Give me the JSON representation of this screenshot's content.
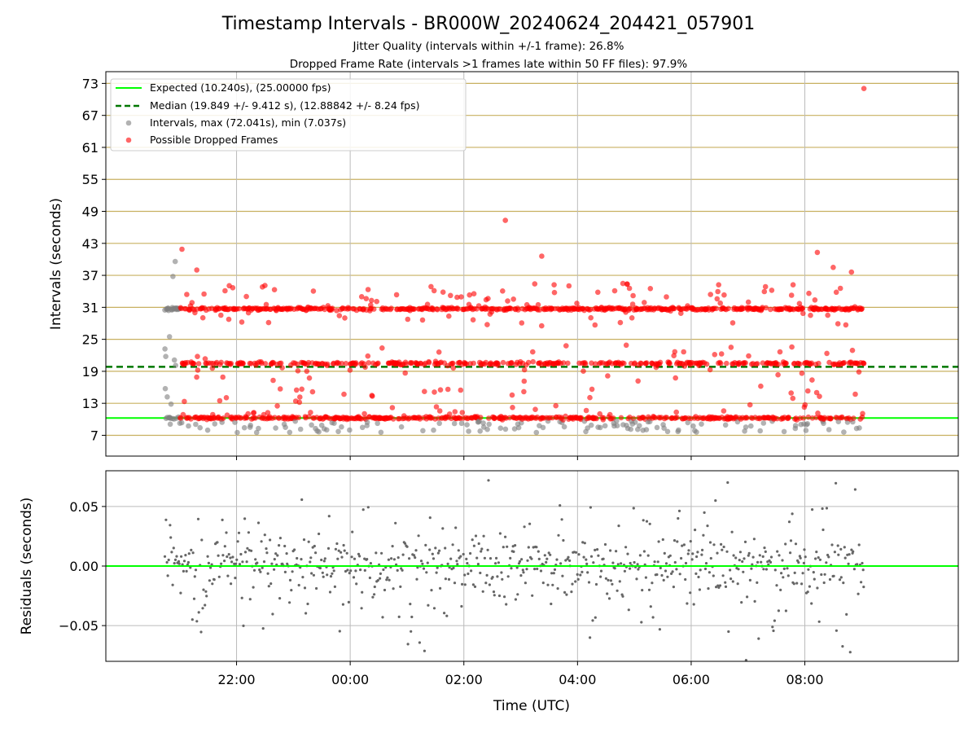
{
  "chart_data": {
    "type": "scatter",
    "title": "Timestamp Intervals - BR000W_20240624_204421_057901",
    "subtitles": [
      "Jitter Quality (intervals within +/-1 frame): 26.8%",
      "Dropped Frame Rate (intervals >1 frames late within 50 FF files): 97.9%"
    ],
    "xlabel": "Time (UTC)",
    "x_tick_labels": [
      "22:00",
      "00:00",
      "02:00",
      "04:00",
      "06:00",
      "08:00"
    ],
    "x_tick_hours": [
      22,
      24,
      26,
      28,
      30,
      32
    ],
    "x_range_hours": [
      19.7,
      34.7
    ],
    "top_panel": {
      "ylabel": "Intervals (seconds)",
      "ylim": [
        3.1,
        75.2
      ],
      "yticks": [
        7,
        13,
        19,
        25,
        31,
        37,
        43,
        49,
        55,
        61,
        67,
        73
      ],
      "expected_interval": 10.24,
      "median_interval": 19.849,
      "legend": [
        "Expected (10.240s), (25.00000 fps)",
        "Median (19.849 +/- 9.412 s), (12.88842 +/- 8.24 fps)",
        "Intervals, max (72.041s), min (7.037s)",
        "Possible Dropped Frames"
      ],
      "data_start_hour": 20.74,
      "data_end_hour": 33.04,
      "normal_level": 10.24,
      "dropped_levels": [
        10.24,
        20.48,
        30.72
      ],
      "notable_points": [
        {
          "x": 20.74,
          "y": 23.2
        },
        {
          "x": 20.78,
          "y": 14.2
        },
        {
          "x": 20.82,
          "y": 25.5
        },
        {
          "x": 20.88,
          "y": 36.8
        },
        {
          "x": 20.92,
          "y": 39.6
        },
        {
          "x": 21.04,
          "y": 41.9
        },
        {
          "x": 21.3,
          "y": 38.0
        },
        {
          "x": 26.73,
          "y": 47.3
        },
        {
          "x": 27.37,
          "y": 40.6
        },
        {
          "x": 32.22,
          "y": 41.3
        },
        {
          "x": 32.5,
          "y": 38.5
        },
        {
          "x": 32.82,
          "y": 37.6
        },
        {
          "x": 33.04,
          "y": 72.04
        }
      ]
    },
    "bottom_panel": {
      "ylabel": "Residuals (seconds)",
      "ylim": [
        -0.08,
        0.08
      ],
      "yticks": [
        -0.05,
        0.0,
        0.05
      ],
      "ytick_labels": [
        "−0.05",
        "0.00",
        "0.05"
      ],
      "zero_line": 0
    },
    "colors": {
      "expected": "#00ff00",
      "median": "#007700",
      "intervals": "#7f7f7f",
      "dropped": "#ff0000",
      "y_grid": "#c8b060",
      "x_grid": "#bbbbbb"
    },
    "grid": "on",
    "legend_placement": "top-left"
  }
}
